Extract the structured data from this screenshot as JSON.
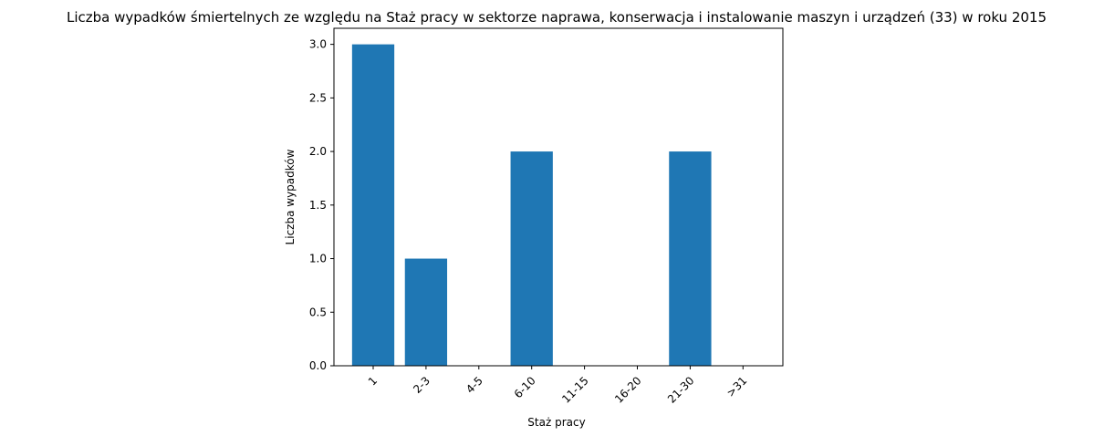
{
  "chart_data": {
    "type": "bar",
    "title": "Liczba wypadków śmiertelnych ze względu na Staż pracy w sektorze naprawa, konserwacja i instalowanie maszyn i urządzeń  (33) w roku 2015",
    "xlabel": "Staż pracy",
    "ylabel": "Liczba wypadków",
    "categories": [
      "1",
      "2-3",
      "4-5",
      "6-10",
      "11-15",
      "16-20",
      "21-30",
      ">31"
    ],
    "values": [
      3,
      1,
      0,
      2,
      0,
      0,
      2,
      0
    ],
    "ylim": [
      0,
      3.15
    ],
    "yticks": [
      0.0,
      0.5,
      1.0,
      1.5,
      2.0,
      2.5,
      3.0
    ],
    "ytick_labels": [
      "0.0",
      "0.5",
      "1.0",
      "1.5",
      "2.0",
      "2.5",
      "3.0"
    ],
    "grid": false,
    "legend": false,
    "bar_color": "#1f77b4"
  }
}
